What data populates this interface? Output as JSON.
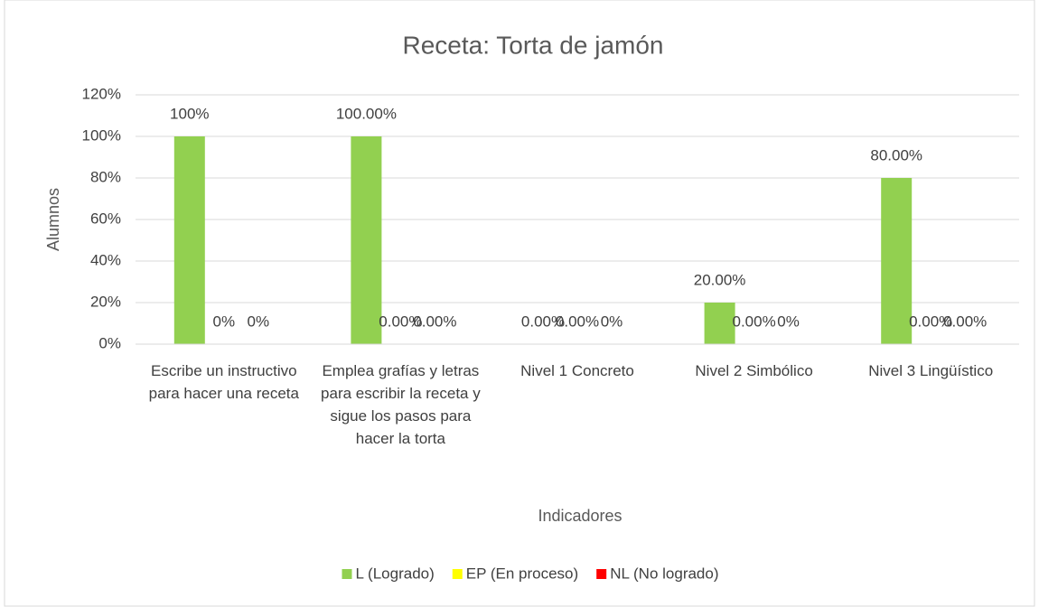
{
  "chart_data": {
    "type": "bar",
    "title": "Receta: Torta de jamón",
    "x_label": "Indicadores",
    "y_label": "Alumnos",
    "categories": [
      "Escribe un instructivo para hacer una receta",
      "Emplea grafías y letras para escribir la receta y sigue los pasos para hacer la torta",
      "Nivel 1 Concreto",
      "Nivel 2 Simbólico",
      "Nivel 3 Lingüístico"
    ],
    "series": [
      {
        "name": "L (Logrado)",
        "color": "#92d050",
        "values": [
          100,
          100,
          0,
          20,
          80
        ],
        "value_labels": [
          "100%",
          "100.00%",
          "0.00%",
          "20.00%",
          "80.00%"
        ]
      },
      {
        "name": "EP (En proceso)",
        "color": "#ffff00",
        "values": [
          0,
          0,
          0,
          0,
          0
        ],
        "value_labels": [
          "0%",
          "0.00%",
          "0.00%",
          "0.00%",
          "0.00%"
        ]
      },
      {
        "name": "NL (No logrado)",
        "color": "#ff0000",
        "values": [
          0,
          0,
          0,
          0,
          0
        ],
        "value_labels": [
          "0%",
          "0.00%",
          "0%",
          "0%",
          "0.00%"
        ]
      }
    ],
    "ylim": [
      0,
      120
    ],
    "yticks": [
      {
        "value": 0,
        "label": "0%"
      },
      {
        "value": 20,
        "label": "20%"
      },
      {
        "value": 40,
        "label": "40%"
      },
      {
        "value": 60,
        "label": "60%"
      },
      {
        "value": 80,
        "label": "80%"
      },
      {
        "value": 100,
        "label": "100%"
      },
      {
        "value": 120,
        "label": "120%"
      }
    ],
    "grid": true,
    "legend": "bottom"
  }
}
